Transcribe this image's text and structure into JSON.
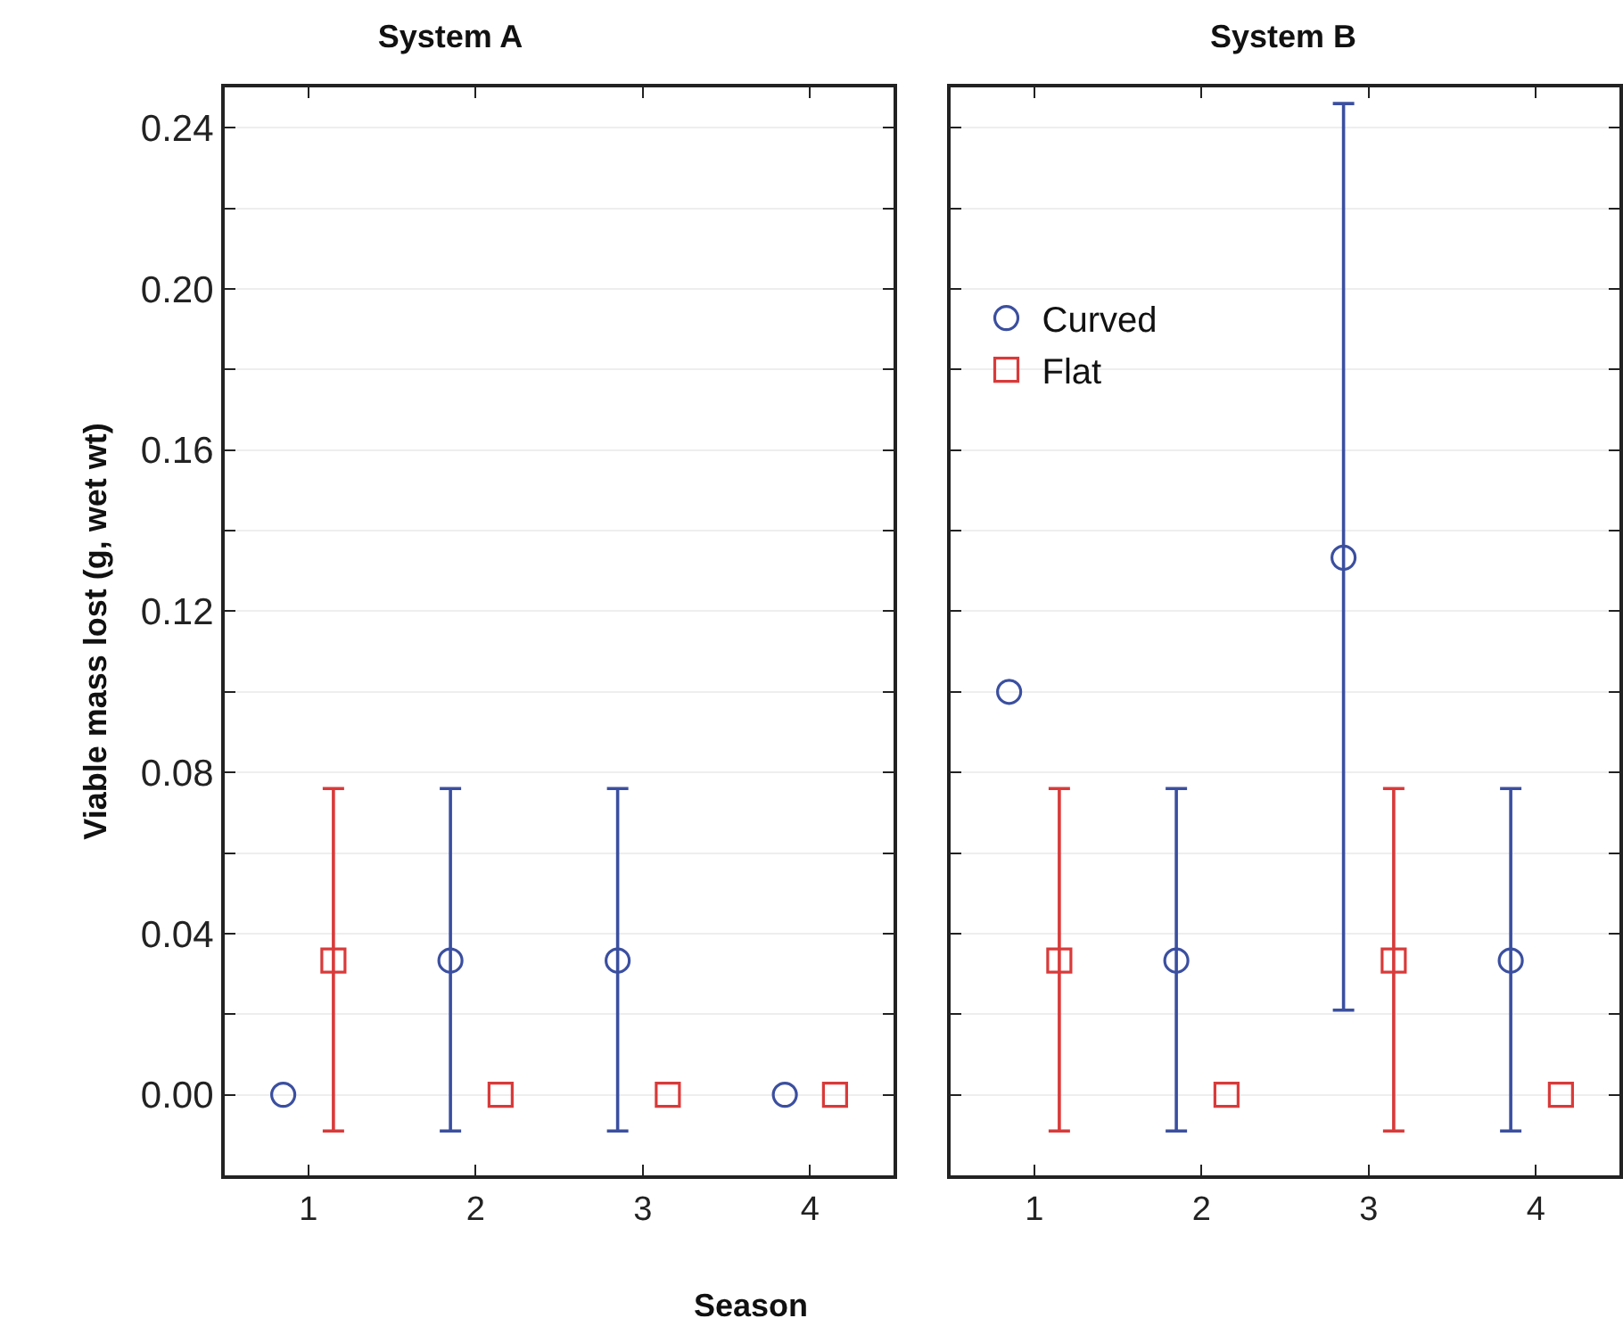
{
  "chart_data": [
    {
      "type": "scatter",
      "title": "System A",
      "xlabel": "Season",
      "ylabel": "Viable mass lost (g, wet wt)",
      "xlim": [
        0.5,
        4.5
      ],
      "xticks": [
        1,
        2,
        3,
        4
      ],
      "ylim": [
        -0.02,
        0.25
      ],
      "yticks": [
        {
          "value": 0,
          "label": "0.00"
        },
        {
          "value": 0.02,
          "label": null
        },
        {
          "value": 0.04,
          "label": "0.04"
        },
        {
          "value": 0.06,
          "label": null
        },
        {
          "value": 0.08,
          "label": "0.08"
        },
        {
          "value": 0.1,
          "label": null
        },
        {
          "value": 0.12,
          "label": "0.12"
        },
        {
          "value": 0.14,
          "label": null
        },
        {
          "value": 0.16,
          "label": "0.16"
        },
        {
          "value": 0.18,
          "label": null
        },
        {
          "value": 0.2,
          "label": "0.20"
        },
        {
          "value": 0.22,
          "label": null
        },
        {
          "value": 0.24,
          "label": "0.24"
        }
      ],
      "grid": "y",
      "legend": false,
      "series": [
        {
          "color": "#3b4fa0",
          "marker": "circle",
          "x": [
            0.85,
            1.85,
            2.85,
            3.85
          ],
          "values": [
            0,
            0.0333,
            0.0333,
            0
          ],
          "errors": [
            null,
            [
              -0.009,
              0.076
            ],
            [
              -0.009,
              0.076
            ],
            null
          ]
        },
        {
          "color": "#d93a3a",
          "marker": "square",
          "x": [
            1.15,
            2.15,
            3.15,
            4.15
          ],
          "values": [
            0.0333,
            0,
            0,
            0
          ],
          "errors": [
            [
              -0.009,
              0.076
            ],
            null,
            null,
            null
          ]
        }
      ]
    },
    {
      "type": "scatter",
      "title": "System B",
      "xlim": [
        0.5,
        4.5
      ],
      "xticks": [
        1,
        2,
        3,
        4
      ],
      "ylim": [
        -0.02,
        0.25
      ],
      "yticks": [
        {
          "value": 0,
          "label": null
        },
        {
          "value": 0.02,
          "label": null
        },
        {
          "value": 0.04,
          "label": null
        },
        {
          "value": 0.06,
          "label": null
        },
        {
          "value": 0.08,
          "label": null
        },
        {
          "value": 0.1,
          "label": null
        },
        {
          "value": 0.12,
          "label": null
        },
        {
          "value": 0.14,
          "label": null
        },
        {
          "value": 0.16,
          "label": null
        },
        {
          "value": 0.18,
          "label": null
        },
        {
          "value": 0.2,
          "label": null
        },
        {
          "value": 0.22,
          "label": null
        },
        {
          "value": 0.24,
          "label": null
        }
      ],
      "grid": "y",
      "legend": "top left",
      "tick_labels": "x",
      "series": [
        {
          "name": "Curved",
          "color": "#3b4fa0",
          "marker": "circle",
          "x": [
            0.85,
            1.85,
            2.85,
            3.85
          ],
          "values": [
            0.1,
            0.0333,
            0.1333,
            0.0333
          ],
          "errors": [
            null,
            [
              -0.009,
              0.076
            ],
            [
              0.021,
              0.246
            ],
            [
              -0.009,
              0.076
            ]
          ]
        },
        {
          "name": "Flat",
          "color": "#d93a3a",
          "marker": "square",
          "x": [
            1.15,
            2.15,
            3.15,
            4.15
          ],
          "values": [
            0.0333,
            0,
            0.0333,
            0
          ],
          "errors": [
            [
              -0.009,
              0.076
            ],
            null,
            [
              -0.009,
              0.076
            ],
            null
          ]
        }
      ]
    }
  ]
}
